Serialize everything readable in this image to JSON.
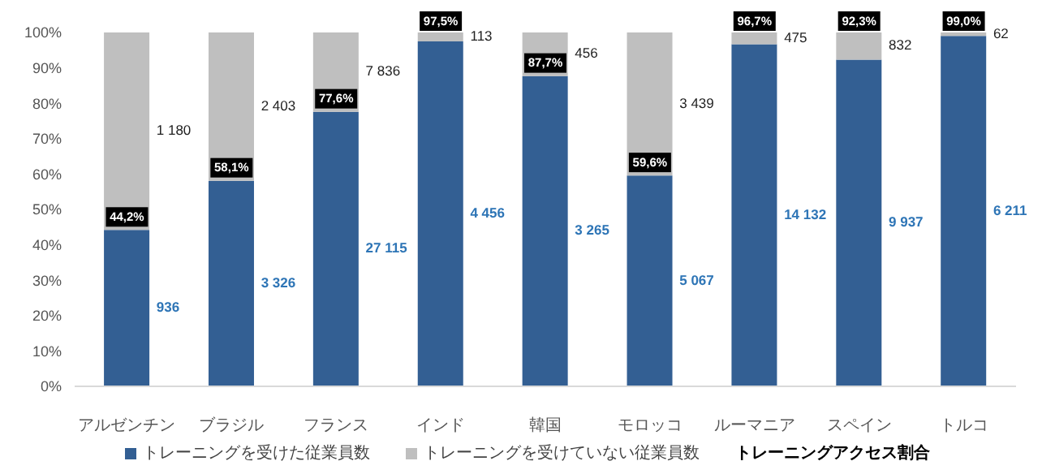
{
  "chart_data": {
    "type": "bar",
    "stacked": true,
    "categories": [
      "アルゼンチン",
      "ブラジル",
      "フランス",
      "インド",
      "韓国",
      "モロッコ",
      "ルーマニア",
      "スペイン",
      "トルコ"
    ],
    "series": [
      {
        "name": "トレーニングを受けた従業員数",
        "color": "#335f93",
        "values": [
          44.2,
          58.1,
          77.6,
          97.5,
          87.7,
          59.6,
          96.7,
          92.3,
          99.0
        ],
        "value_labels": [
          "44,2%",
          "58,1%",
          "77,6%",
          "97,5%",
          "87,7%",
          "59,6%",
          "96,7%",
          "92,3%",
          "99,0%"
        ]
      },
      {
        "name": "トレーニングを受けていない従業員数",
        "color": "#bfbfbf",
        "values": [
          55.8,
          41.9,
          22.4,
          2.5,
          12.3,
          40.4,
          3.3,
          7.7,
          1.0
        ]
      }
    ],
    "legend_title": "トレーニングアクセス割合",
    "annotations": [
      "936",
      "1 180",
      "3 326",
      "2 403",
      "27 115",
      "7 836",
      "4 456",
      "113",
      "3 265",
      "456",
      "5 067",
      "3 439",
      "14 132",
      "475",
      "9 937",
      "832",
      "6 211",
      "62"
    ],
    "ylim": [
      0,
      100
    ],
    "yticks": [
      {
        "value": 0,
        "label": "0%"
      },
      {
        "value": 10,
        "label": "10%"
      },
      {
        "value": 20,
        "label": "20%"
      },
      {
        "value": 30,
        "label": "30%"
      },
      {
        "value": 40,
        "label": "40%"
      },
      {
        "value": 50,
        "label": "50%"
      },
      {
        "value": 60,
        "label": "60%"
      },
      {
        "value": 70,
        "label": "70%"
      },
      {
        "value": 80,
        "label": "80%"
      },
      {
        "value": 90,
        "label": "90%"
      },
      {
        "value": 100,
        "label": "100%"
      }
    ],
    "grid": false,
    "legend": "bottom"
  }
}
